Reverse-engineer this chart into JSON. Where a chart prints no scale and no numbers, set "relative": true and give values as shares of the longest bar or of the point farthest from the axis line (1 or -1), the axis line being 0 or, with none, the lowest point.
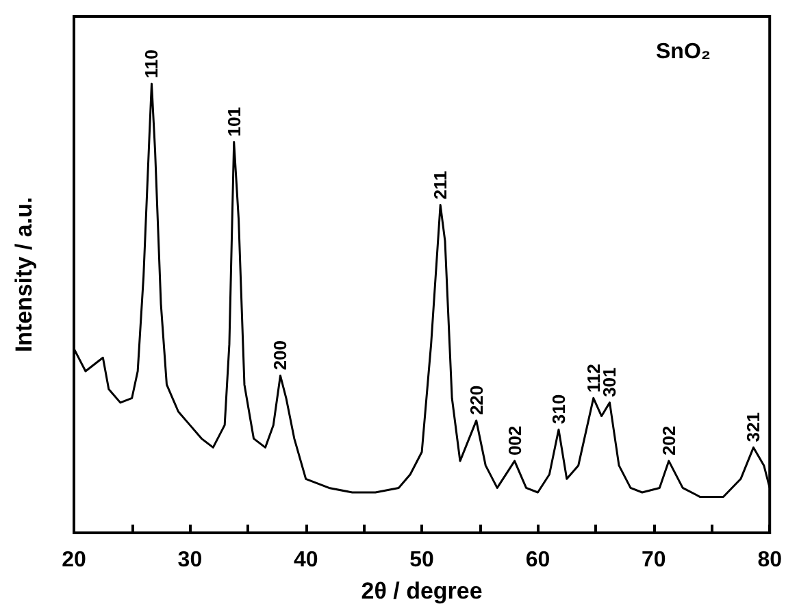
{
  "chart_data": {
    "type": "line",
    "relative": true,
    "xlabel": "2θ / degree",
    "ylabel": "Intensity / a.u.",
    "xlim": [
      20,
      80
    ],
    "xticks": [
      20,
      {
        "value": 25,
        "label": null
      },
      30,
      {
        "value": 35,
        "label": null
      },
      40,
      {
        "value": 45,
        "label": null
      },
      50,
      {
        "value": 55,
        "label": null
      },
      60,
      {
        "value": 65,
        "label": null
      },
      70,
      {
        "value": 75,
        "label": null
      },
      80
    ],
    "tick_labels": "x",
    "grid": false,
    "marker": "none",
    "line_style": "solid",
    "series": [
      {
        "color": "#000000",
        "x": [
          20,
          21,
          22.5,
          23,
          24,
          25,
          25.5,
          26,
          26.5,
          26.7,
          27,
          27.5,
          28,
          29,
          30,
          31,
          32,
          33,
          33.4,
          33.8,
          34.2,
          34.7,
          35.5,
          36.5,
          37.2,
          37.8,
          38.3,
          39,
          40,
          42,
          44,
          46,
          48,
          49,
          50,
          50.8,
          51.6,
          52,
          52.6,
          53.3,
          54.7,
          55.5,
          56.5,
          58,
          59,
          60,
          61,
          61.8,
          62.5,
          63.5,
          64.8,
          65.5,
          66.2,
          67,
          68,
          69,
          70.5,
          71.3,
          72.5,
          74,
          76,
          77.5,
          78.6,
          79.5,
          80
        ],
        "values": [
          0.41,
          0.36,
          0.39,
          0.32,
          0.29,
          0.3,
          0.36,
          0.57,
          0.88,
          1,
          0.85,
          0.51,
          0.33,
          0.27,
          0.24,
          0.21,
          0.19,
          0.24,
          0.42,
          0.87,
          0.7,
          0.33,
          0.21,
          0.19,
          0.24,
          0.35,
          0.3,
          0.21,
          0.12,
          0.1,
          0.09,
          0.09,
          0.1,
          0.13,
          0.18,
          0.42,
          0.73,
          0.65,
          0.3,
          0.16,
          0.25,
          0.15,
          0.1,
          0.16,
          0.1,
          0.09,
          0.13,
          0.23,
          0.12,
          0.15,
          0.3,
          0.26,
          0.29,
          0.15,
          0.1,
          0.09,
          0.1,
          0.16,
          0.1,
          0.08,
          0.08,
          0.12,
          0.19,
          0.15,
          0.1
        ]
      }
    ],
    "annotations": [
      "SnO₂",
      {
        "text": "110",
        "x": 26.7,
        "y": 1
      },
      {
        "text": "101",
        "x": 33.8,
        "y": 0.87
      },
      {
        "text": "200",
        "x": 37.8,
        "y": 0.35
      },
      {
        "text": "211",
        "x": 51.6,
        "y": 0.73
      },
      {
        "text": "220",
        "x": 54.7,
        "y": 0.25
      },
      {
        "text": "002",
        "x": 58,
        "y": 0.16
      },
      {
        "text": "310",
        "x": 61.8,
        "y": 0.23
      },
      {
        "text": "112",
        "x": 64.8,
        "y": 0.3
      },
      {
        "text": "301",
        "x": 66.2,
        "y": 0.29
      },
      {
        "text": "202",
        "x": 71.3,
        "y": 0.16
      },
      {
        "text": "321",
        "x": 78.6,
        "y": 0.19
      }
    ]
  }
}
